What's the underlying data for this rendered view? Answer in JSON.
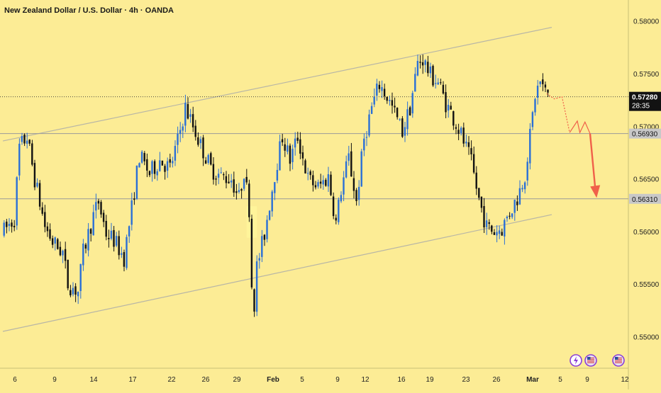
{
  "header": {
    "title": "New Zealand Dollar / U.S. Dollar · 4h · OANDA"
  },
  "colors": {
    "background": "#fcec95",
    "candle_up": "#2a6fd6",
    "candle_down": "#111111",
    "channel": "#b8b6a6",
    "level_line": "#9a9a9a",
    "forecast": "#f0604a",
    "highlight": "#fff59a"
  },
  "chart_data": {
    "type": "candlestick",
    "title": "New Zealand Dollar / U.S. Dollar · 4h · OANDA",
    "ylim": [
      0.547,
      0.582
    ],
    "y_ticks": [
      "0.58000",
      "0.57500",
      "0.57000",
      "0.56500",
      "0.56000",
      "0.55500",
      "0.55000"
    ],
    "x_ticks": [
      "6",
      "9",
      "14",
      "17",
      "22",
      "26",
      "29",
      "Feb",
      "5",
      "9",
      "12",
      "16",
      "19",
      "23",
      "26",
      "Mar",
      "5",
      "9",
      "12"
    ],
    "grid": false,
    "current_price": {
      "value": "0.57280",
      "countdown": "28:35",
      "price": 0.5728
    },
    "levels": [
      {
        "label": "0.56930",
        "price": 0.5693
      },
      {
        "label": "0.56310",
        "price": 0.5631
      }
    ],
    "channel": {
      "upper": {
        "from_bar": 0,
        "from_price": 0.5686,
        "to_bar": 215,
        "to_price": 0.5794
      },
      "lower": {
        "from_bar": 0,
        "from_price": 0.5505,
        "to_bar": 215,
        "to_price": 0.5616
      }
    },
    "path": [
      [
        0,
        0.5598
      ],
      [
        5,
        0.5612
      ],
      [
        7,
        0.568
      ],
      [
        10,
        0.569
      ],
      [
        13,
        0.565
      ],
      [
        17,
        0.5605
      ],
      [
        20,
        0.559
      ],
      [
        24,
        0.558
      ],
      [
        26,
        0.555
      ],
      [
        30,
        0.5543
      ],
      [
        32,
        0.558
      ],
      [
        36,
        0.5615
      ],
      [
        38,
        0.5628
      ],
      [
        41,
        0.5598
      ],
      [
        44,
        0.5592
      ],
      [
        48,
        0.5575
      ],
      [
        51,
        0.5622
      ],
      [
        54,
        0.5672
      ],
      [
        58,
        0.5655
      ],
      [
        62,
        0.5668
      ],
      [
        66,
        0.566
      ],
      [
        69,
        0.5686
      ],
      [
        72,
        0.5718
      ],
      [
        75,
        0.57
      ],
      [
        78,
        0.5682
      ],
      [
        82,
        0.566
      ],
      [
        86,
        0.5652
      ],
      [
        90,
        0.565
      ],
      [
        93,
        0.5632
      ],
      [
        95,
        0.5658
      ],
      [
        97,
        0.5622
      ],
      [
        98,
        0.555
      ],
      [
        99,
        0.5532
      ],
      [
        100,
        0.5566
      ],
      [
        103,
        0.5598
      ],
      [
        107,
        0.5655
      ],
      [
        110,
        0.569
      ],
      [
        113,
        0.5668
      ],
      [
        116,
        0.569
      ],
      [
        120,
        0.565
      ],
      [
        124,
        0.5642
      ],
      [
        128,
        0.5652
      ],
      [
        131,
        0.5608
      ],
      [
        133,
        0.564
      ],
      [
        136,
        0.567
      ],
      [
        139,
        0.5628
      ],
      [
        142,
        0.5688
      ],
      [
        145,
        0.5718
      ],
      [
        148,
        0.574
      ],
      [
        151,
        0.5728
      ],
      [
        154,
        0.5712
      ],
      [
        157,
        0.5695
      ],
      [
        160,
        0.5718
      ],
      [
        163,
        0.576
      ],
      [
        165,
        0.5764
      ],
      [
        168,
        0.5748
      ],
      [
        171,
        0.5742
      ],
      [
        174,
        0.5722
      ],
      [
        177,
        0.5708
      ],
      [
        180,
        0.5692
      ],
      [
        184,
        0.5665
      ],
      [
        187,
        0.563
      ],
      [
        190,
        0.5604
      ],
      [
        193,
        0.56
      ],
      [
        196,
        0.5603
      ],
      [
        199,
        0.5618
      ],
      [
        202,
        0.5632
      ],
      [
        205,
        0.5655
      ],
      [
        207,
        0.569
      ],
      [
        209,
        0.573
      ],
      [
        211,
        0.5742
      ],
      [
        213,
        0.5732
      ]
    ],
    "forecast_path": [
      [
        213,
        0.5731
      ],
      [
        216,
        0.5726
      ],
      [
        219,
        0.5728
      ],
      [
        222,
        0.5694
      ],
      [
        225,
        0.5705
      ],
      [
        226,
        0.5694
      ],
      [
        228,
        0.5704
      ],
      [
        230,
        0.5693
      ],
      [
        232,
        0.5632
      ]
    ],
    "events": [
      {
        "icon": "lightning-icon",
        "symbol": "⚡"
      },
      {
        "icon": "us-flag-icon",
        "symbol": "🇺🇸"
      },
      {
        "icon": "us-flag-icon",
        "symbol": "🇺🇸"
      }
    ]
  }
}
